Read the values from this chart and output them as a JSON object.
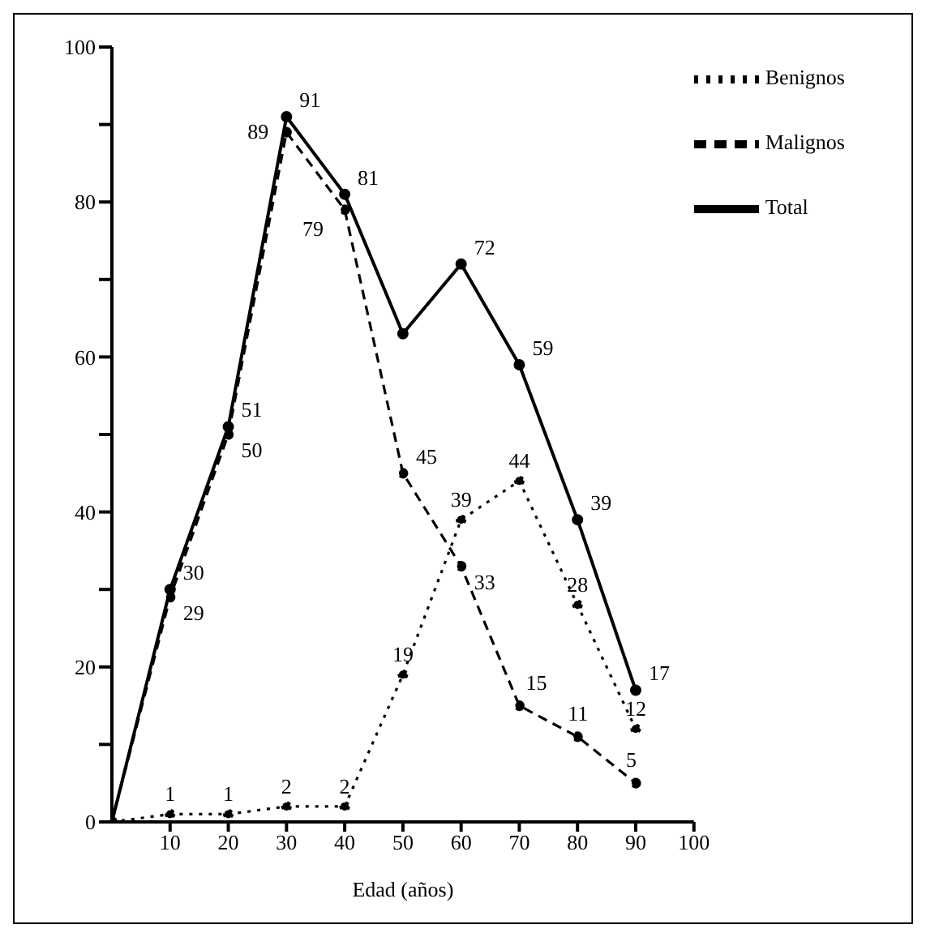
{
  "chart_data": {
    "type": "line",
    "x": [
      0,
      10,
      20,
      30,
      40,
      50,
      60,
      70,
      80,
      90
    ],
    "series": [
      {
        "name": "Malignos",
        "color": "#000000",
        "line_style": "dashed",
        "values": [
          0,
          29,
          50,
          89,
          79,
          45,
          33,
          15,
          11,
          5
        ],
        "value_labels": [
          null,
          "29",
          "50",
          "89",
          "79",
          "45",
          "33",
          "15",
          "11",
          "5"
        ]
      },
      {
        "name": "Benignos",
        "color": "#000000",
        "line_style": "dotted",
        "values": [
          0,
          1,
          1,
          2,
          2,
          19,
          39,
          44,
          28,
          12
        ],
        "value_labels": [
          null,
          "1",
          "1",
          "2",
          "2",
          "19",
          "39",
          "44",
          "28",
          "12"
        ]
      },
      {
        "name": "Total",
        "color": "#000000",
        "line_style": "solid",
        "values": [
          0,
          30,
          51,
          91,
          81,
          63,
          72,
          59,
          39,
          17
        ],
        "value_labels": [
          null,
          "30",
          "51",
          "91",
          "81",
          null,
          "72",
          "59",
          "39",
          "17"
        ]
      }
    ],
    "xlabel": "Edad (años)",
    "xlim": [
      0,
      100
    ],
    "xticks": [
      10,
      20,
      30,
      40,
      50,
      60,
      70,
      80,
      90,
      100
    ],
    "ylim": [
      0,
      100
    ],
    "yticks": [
      0,
      {
        "value": 10,
        "label": null
      },
      20,
      {
        "value": 30,
        "label": null
      },
      40,
      {
        "value": 50,
        "label": null
      },
      60,
      {
        "value": 70,
        "label": null
      },
      80,
      {
        "value": 90,
        "label": null
      },
      100
    ],
    "marker": "circle",
    "legend": "top right"
  }
}
